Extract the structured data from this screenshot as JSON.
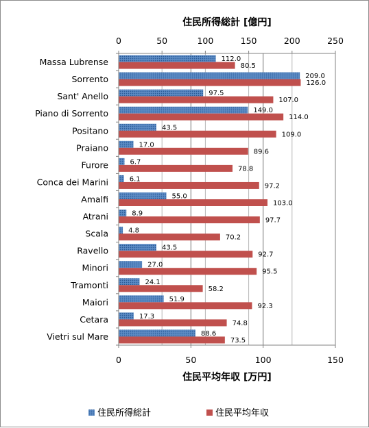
{
  "chart_data": {
    "type": "bar",
    "orientation": "horizontal",
    "categories": [
      "Massa Lubrense",
      "Sorrento",
      "Sant' Anello",
      "Piano di Sorrento",
      "Positano",
      "Praiano",
      "Furore",
      "Conca dei Marini",
      "Amalfi",
      "Atrani",
      "Scala",
      "Ravello",
      "Minori",
      "Tramonti",
      "Maiori",
      "Cetara",
      "Vietri sul Mare"
    ],
    "series": [
      {
        "name": "住民所得総計",
        "axis": "top",
        "color": "#4f81bd",
        "values": [
          112.0,
          209.0,
          97.5,
          149.0,
          43.5,
          17.0,
          6.7,
          6.1,
          55.0,
          8.9,
          4.8,
          43.5,
          27.0,
          24.1,
          51.9,
          17.3,
          88.6
        ],
        "labels": [
          "112.0",
          "209.0",
          "97.5",
          "149.0",
          "43.5",
          "17.0",
          "6.7",
          "6.1",
          "55.0",
          "8.9",
          "4.8",
          "43.5",
          "27.0",
          "24.1",
          "51.9",
          "17.3",
          "88.6"
        ]
      },
      {
        "name": "住民平均年収",
        "axis": "bottom",
        "color": "#c0504d",
        "values": [
          80.5,
          126.0,
          107.0,
          114.0,
          109.0,
          89.6,
          78.8,
          97.2,
          103.0,
          97.7,
          70.2,
          92.7,
          95.5,
          58.2,
          92.3,
          74.8,
          73.5
        ],
        "labels": [
          "80.5",
          "126.0",
          "107.0",
          "114.0",
          "109.0",
          "89.6",
          "78.8",
          "97.2",
          "103.0",
          "97.7",
          "70.2",
          "92.7",
          "95.5",
          "58.2",
          "92.3",
          "74.8",
          "73.5"
        ]
      }
    ],
    "top_axis": {
      "title": "住民所得総計 [億円]",
      "range": [
        0,
        250
      ],
      "ticks": [
        "0",
        "50",
        "100",
        "150",
        "200",
        "250"
      ]
    },
    "bottom_axis": {
      "title": "住民平均年収 [万円]",
      "range": [
        0,
        150
      ],
      "ticks": [
        "0",
        "50",
        "100",
        "150"
      ]
    },
    "grid": true,
    "legend_position": "bottom"
  }
}
